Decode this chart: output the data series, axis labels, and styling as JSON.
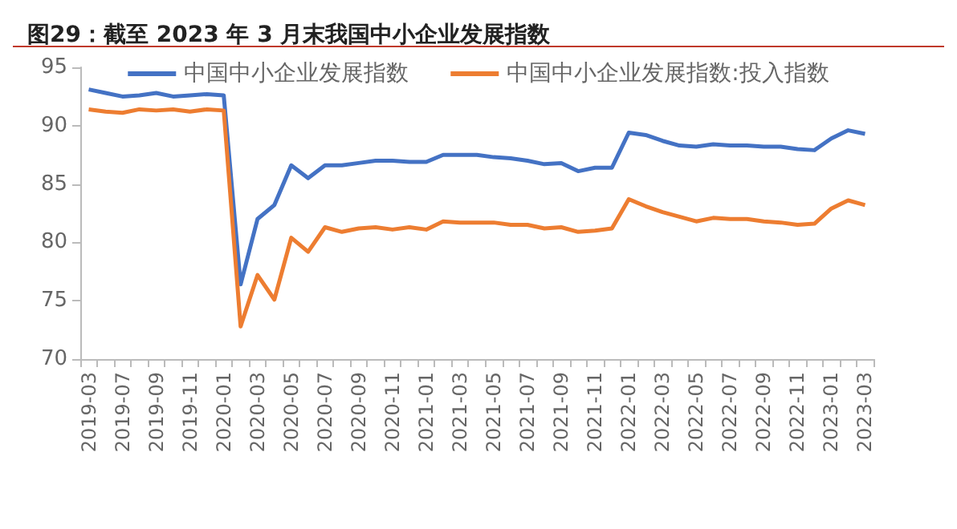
{
  "chart_data": {
    "type": "line",
    "title": "图29：截至 2023 年 3 月末我国中小企业发展指数",
    "categories": [
      "2019-03",
      null,
      "2019-07",
      null,
      "2019-09",
      null,
      "2019-11",
      null,
      "2020-01",
      null,
      "2020-03",
      null,
      "2020-05",
      null,
      "2020-07",
      null,
      "2020-09",
      null,
      "2020-11",
      null,
      "2021-01",
      null,
      "2021-03",
      null,
      "2021-05",
      null,
      "2021-07",
      null,
      "2021-09",
      null,
      "2021-11",
      null,
      "2022-01",
      null,
      "2022-03",
      null,
      "2022-05",
      null,
      "2022-07",
      null,
      "2022-09",
      null,
      "2022-11",
      null,
      "2023-01",
      null,
      "2023-03"
    ],
    "series": [
      {
        "name": "中国中小企业发展指数",
        "color": "#4472c4",
        "values": [
          93.1,
          92.8,
          92.5,
          92.6,
          92.8,
          92.5,
          92.6,
          92.7,
          92.6,
          76.4,
          82.0,
          83.2,
          86.6,
          85.5,
          86.6,
          86.6,
          86.8,
          87.0,
          87.0,
          86.9,
          86.9,
          87.5,
          87.5,
          87.5,
          87.3,
          87.2,
          87.0,
          86.7,
          86.8,
          86.1,
          86.4,
          86.4,
          89.4,
          89.2,
          88.7,
          88.3,
          88.2,
          88.4,
          88.3,
          88.3,
          88.2,
          88.2,
          88.0,
          87.9,
          88.9,
          89.6,
          89.3
        ]
      },
      {
        "name": "中国中小企业发展指数:投入指数",
        "color": "#ed7d31",
        "values": [
          91.4,
          91.2,
          91.1,
          91.4,
          91.3,
          91.4,
          91.2,
          91.4,
          91.3,
          72.8,
          77.2,
          75.1,
          80.4,
          79.2,
          81.3,
          80.9,
          81.2,
          81.3,
          81.1,
          81.3,
          81.1,
          81.8,
          81.7,
          81.7,
          81.7,
          81.5,
          81.5,
          81.2,
          81.3,
          80.9,
          81.0,
          81.2,
          83.7,
          83.1,
          82.6,
          82.2,
          81.8,
          82.1,
          82.0,
          82.0,
          81.8,
          81.7,
          81.5,
          81.6,
          82.9,
          83.6,
          83.2
        ]
      }
    ],
    "ylim": [
      70,
      95
    ],
    "yticks": [
      70,
      75,
      80,
      85,
      90,
      95
    ],
    "grid": false,
    "legend": "top",
    "marker": "none",
    "line_style": "solid"
  }
}
